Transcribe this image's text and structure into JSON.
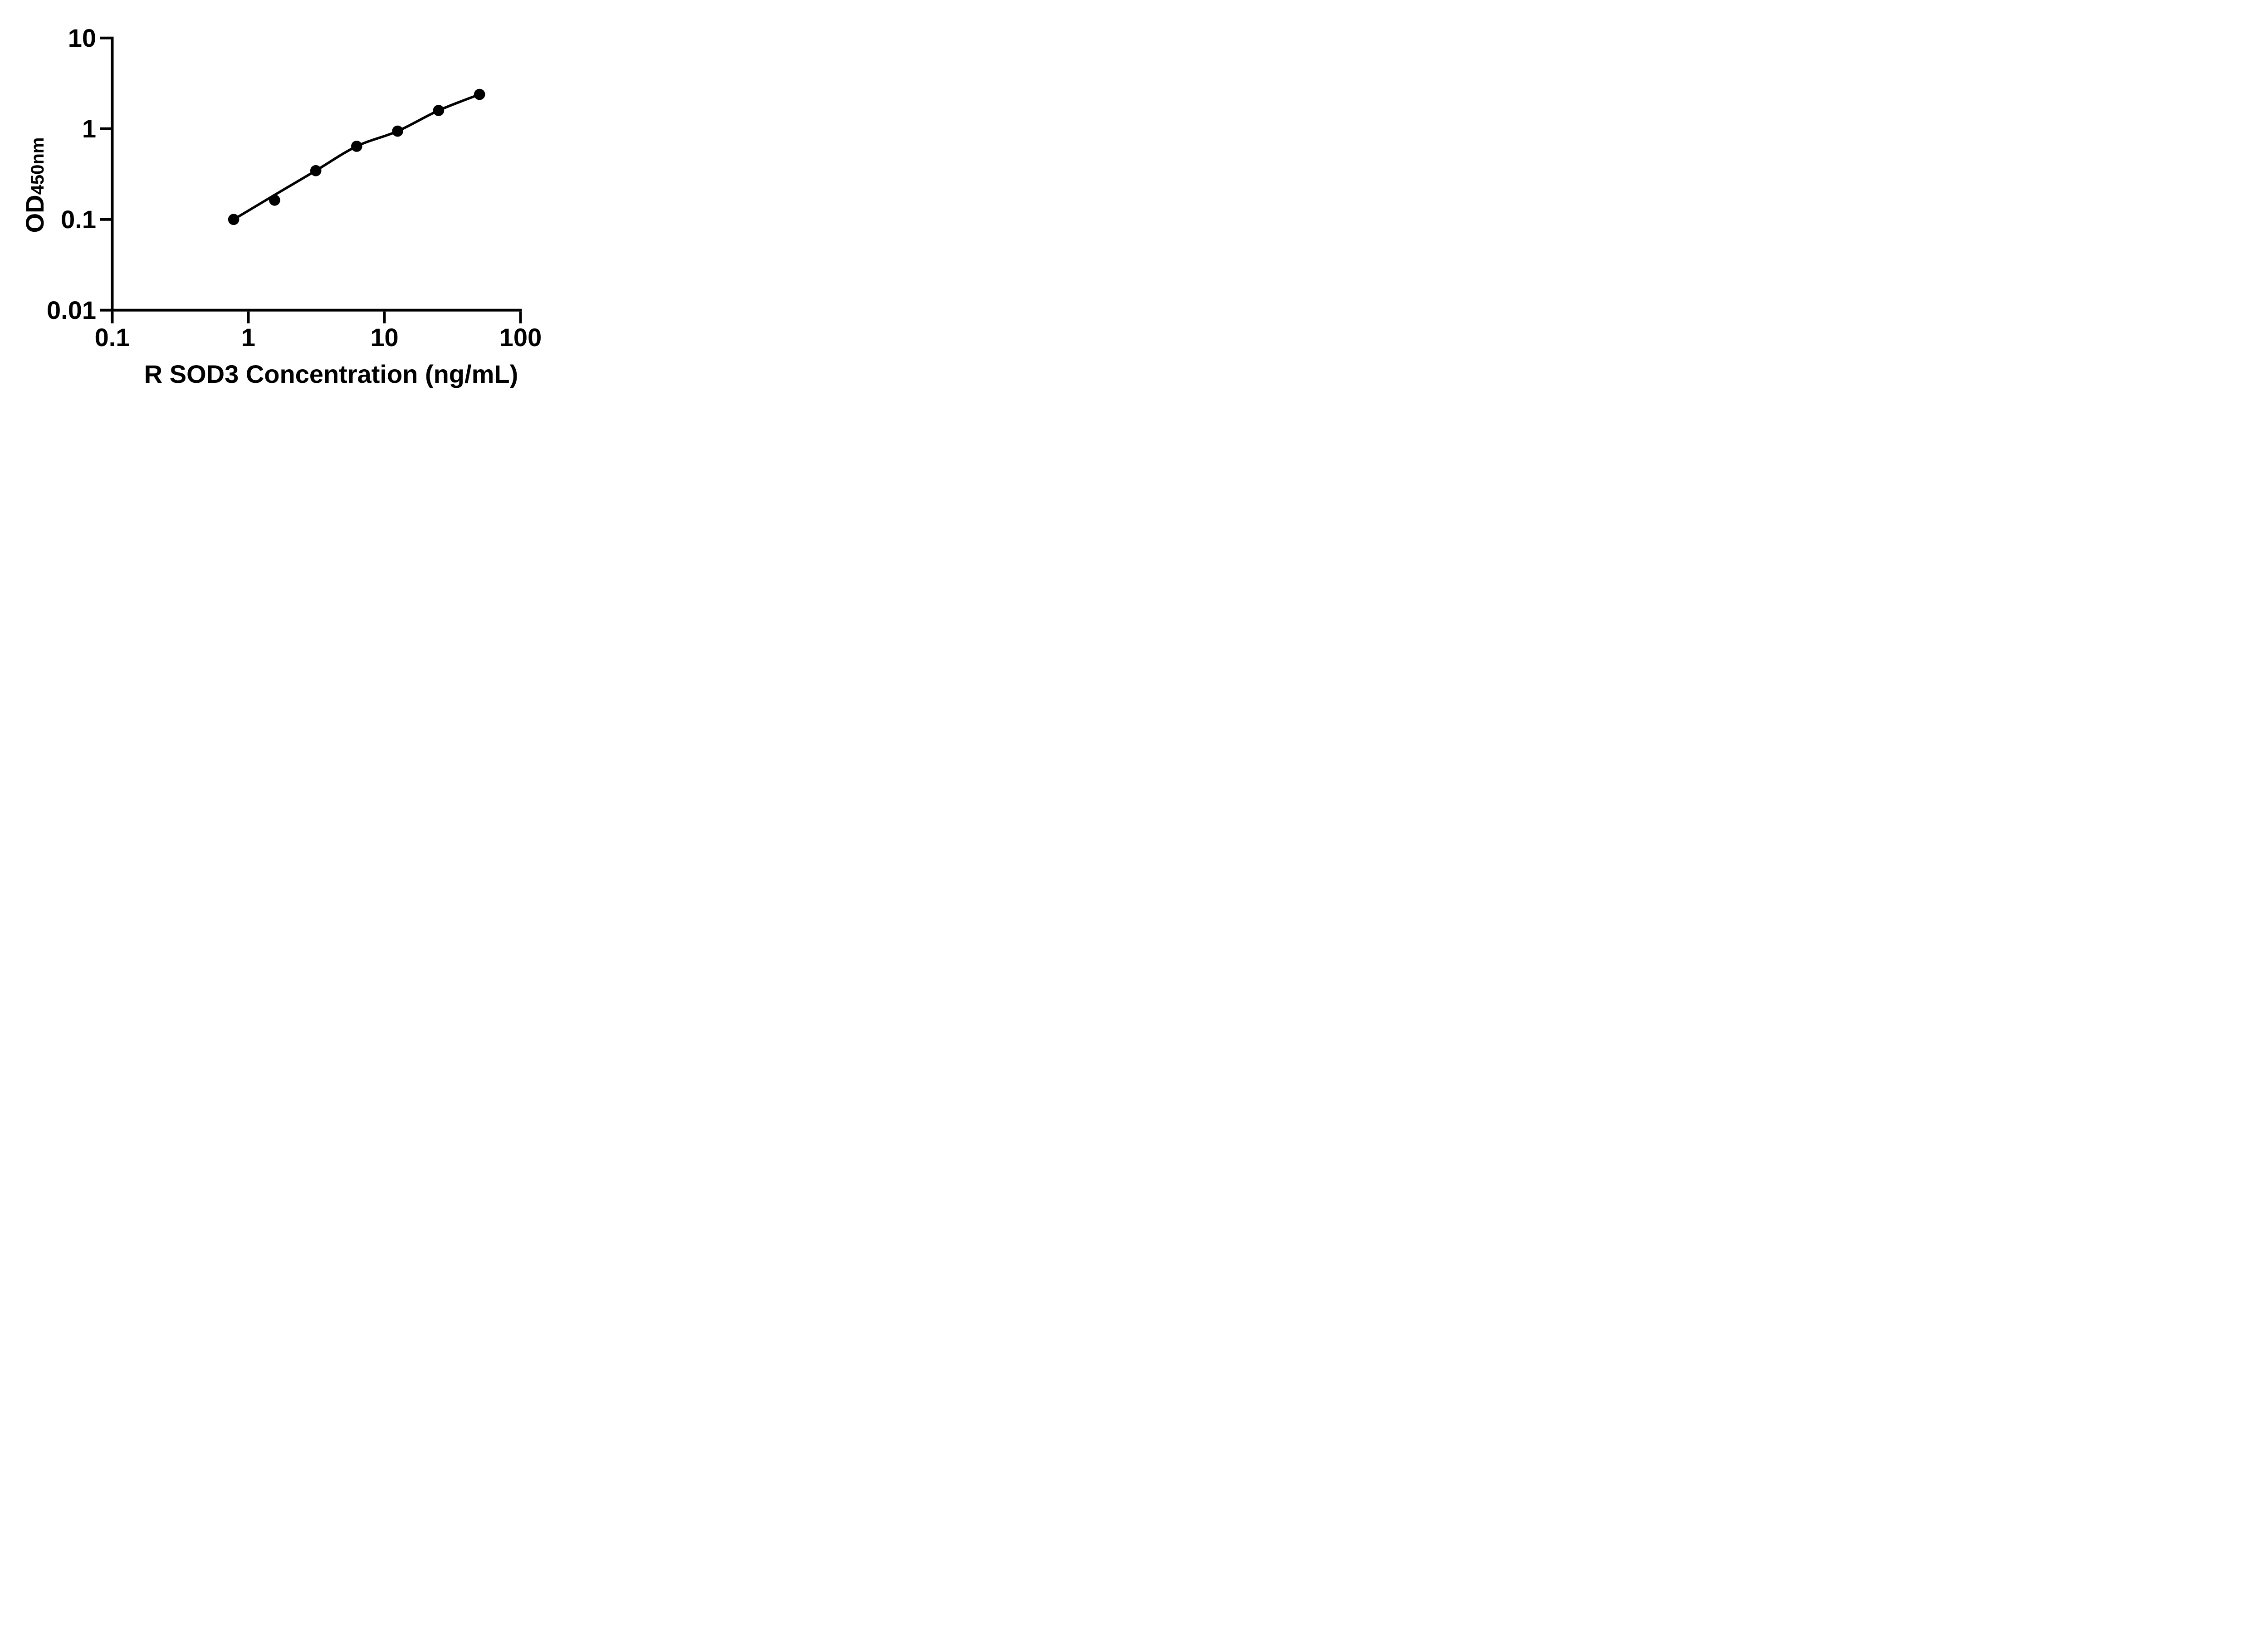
{
  "chart_data": {
    "type": "scatter",
    "title": "",
    "xlabel": "R SOD3 Concentration (ng/mL)",
    "ylabel_main": "OD",
    "ylabel_sub": "450nm",
    "x_scale": "log",
    "y_scale": "log",
    "xlim": [
      0.1,
      100
    ],
    "ylim": [
      0.01,
      10
    ],
    "xtick_labels": [
      "0.1",
      "1",
      "10",
      "100"
    ],
    "xtick_values": [
      0.1,
      1,
      10,
      100
    ],
    "ytick_labels": [
      "10",
      "1",
      "0.1",
      "0.01"
    ],
    "ytick_values": [
      10,
      1,
      0.1,
      0.01
    ],
    "grid": false,
    "legend": null,
    "marker_color": "#000000",
    "line_color": "#000000",
    "background_color": "#ffffff",
    "points": [
      {
        "x": 0.78,
        "y": 0.1
      },
      {
        "x": 1.56,
        "y": 0.163
      },
      {
        "x": 3.13,
        "y": 0.345
      },
      {
        "x": 6.25,
        "y": 0.64
      },
      {
        "x": 12.5,
        "y": 0.94
      },
      {
        "x": 25,
        "y": 1.59
      },
      {
        "x": 50,
        "y": 2.39
      }
    ],
    "fit_curve": [
      {
        "x": 0.78,
        "y": 0.1
      },
      {
        "x": 1.56,
        "y": 0.186
      },
      {
        "x": 3.13,
        "y": 0.345
      },
      {
        "x": 6.25,
        "y": 0.64
      },
      {
        "x": 12.5,
        "y": 0.94
      },
      {
        "x": 25,
        "y": 1.59
      },
      {
        "x": 50,
        "y": 2.39
      }
    ]
  }
}
